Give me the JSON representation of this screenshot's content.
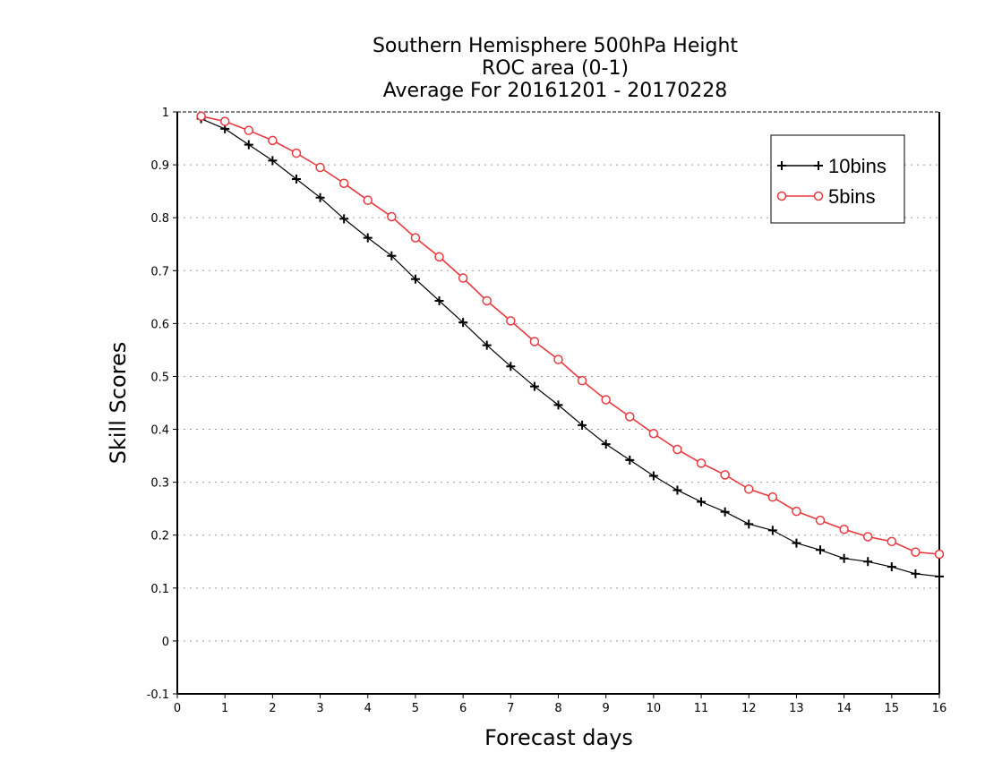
{
  "chart_data": {
    "type": "line",
    "title": [
      "Southern Hemisphere 500hPa Height",
      "ROC area (0-1)",
      "Average For 20161201 - 20170228"
    ],
    "xlabel": "Forecast days",
    "ylabel": "Skill Scores",
    "xlim": [
      0,
      16
    ],
    "ylim": [
      -0.1,
      1
    ],
    "x_ticks": [
      0,
      1,
      2,
      3,
      4,
      5,
      6,
      7,
      8,
      9,
      10,
      11,
      12,
      13,
      14,
      15,
      16
    ],
    "y_ticks": [
      -0.1,
      0,
      0.1,
      0.2,
      0.3,
      0.4,
      0.5,
      0.6,
      0.7,
      0.8,
      0.9,
      1
    ],
    "y_tick_labels": [
      "-0.1",
      "0",
      "0.1",
      "0.2",
      "0.3",
      "0.4",
      "0.5",
      "0.6",
      "0.7",
      "0.8",
      "0.9",
      "1"
    ],
    "grid": "horizontal dotted",
    "legend_position": "top-right",
    "x": [
      0.5,
      1,
      1.5,
      2,
      2.5,
      3,
      3.5,
      4,
      4.5,
      5,
      5.5,
      6,
      6.5,
      7,
      7.5,
      8,
      8.5,
      9,
      9.5,
      10,
      10.5,
      11,
      11.5,
      12,
      12.5,
      13,
      13.5,
      14,
      14.5,
      15,
      15.5,
      16
    ],
    "series": [
      {
        "name": "10bins",
        "color": "#000000",
        "marker": "plus",
        "values": [
          0.987,
          0.968,
          0.938,
          0.908,
          0.873,
          0.838,
          0.798,
          0.762,
          0.728,
          0.684,
          0.643,
          0.602,
          0.559,
          0.519,
          0.481,
          0.446,
          0.408,
          0.372,
          0.342,
          0.312,
          0.285,
          0.263,
          0.244,
          0.221,
          0.209,
          0.185,
          0.172,
          0.156,
          0.15,
          0.14,
          0.127,
          0.122
        ]
      },
      {
        "name": "5bins",
        "color": "#e8393f",
        "marker": "circle",
        "values": [
          0.992,
          0.982,
          0.965,
          0.946,
          0.922,
          0.895,
          0.865,
          0.833,
          0.802,
          0.762,
          0.726,
          0.686,
          0.643,
          0.605,
          0.566,
          0.532,
          0.492,
          0.456,
          0.424,
          0.392,
          0.362,
          0.336,
          0.314,
          0.287,
          0.272,
          0.245,
          0.228,
          0.211,
          0.197,
          0.188,
          0.168,
          0.164
        ]
      }
    ]
  }
}
